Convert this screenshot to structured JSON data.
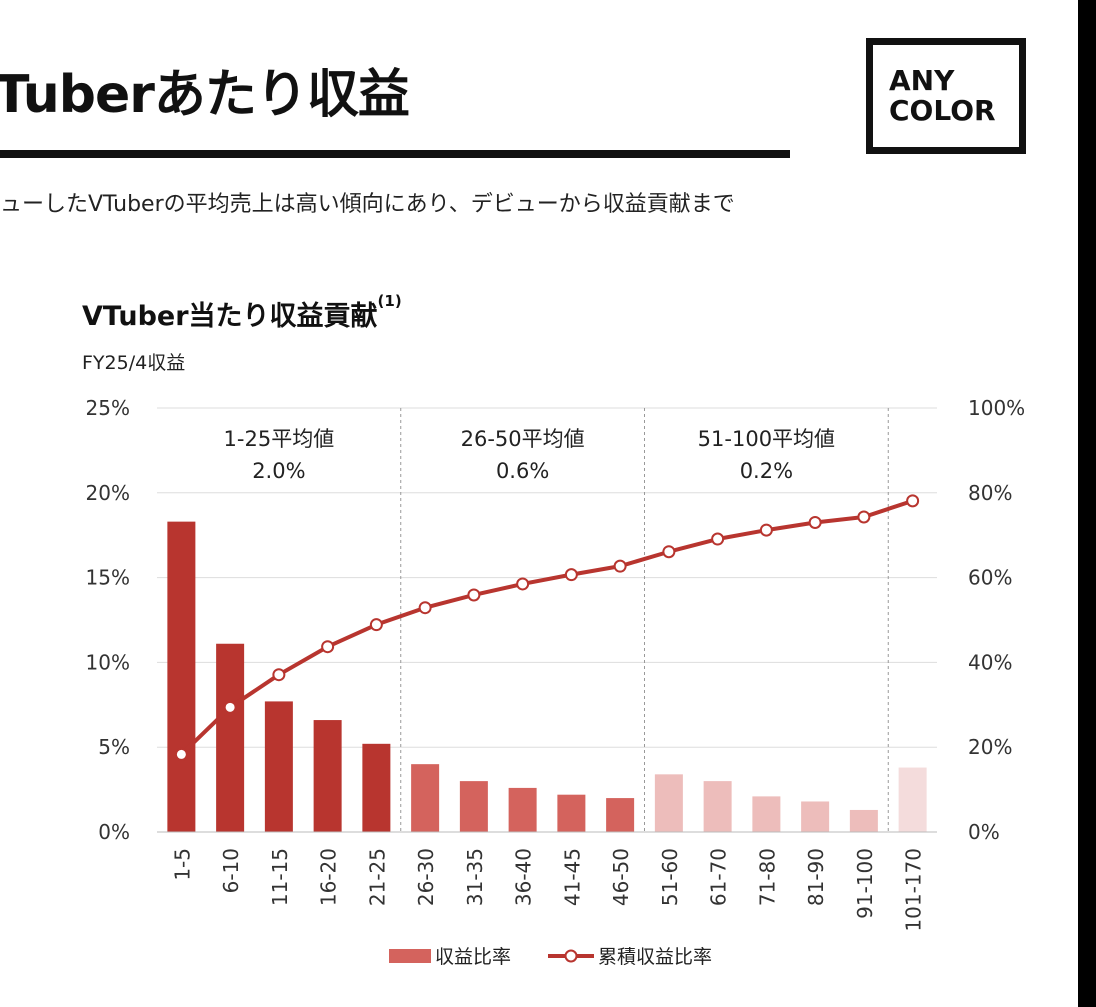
{
  "header": {
    "title": "Tuberあたり収益",
    "logo_line1": "ANY",
    "logo_line2": "COLOR",
    "subtitle": "ューしたVTuberの平均売上は高い傾向にあり、デビューから収益貢献まで"
  },
  "colors": {
    "bar_dark": "#b8352f",
    "bar_mid": "#d4635d",
    "bar_light": "#edbdbb",
    "bar_lightest": "#f4dcdc",
    "line": "#b8352f",
    "grid": "#dddddd"
  },
  "chart_data": {
    "type": "bar",
    "title": "VTuber当たり収益貢献",
    "title_note": "(1)",
    "unit_label": "FY25/4収益",
    "categories": [
      "1-5",
      "6-10",
      "11-15",
      "16-20",
      "21-25",
      "26-30",
      "31-35",
      "36-40",
      "41-45",
      "46-50",
      "51-60",
      "61-70",
      "71-80",
      "81-90",
      "91-100",
      "101-170"
    ],
    "series": [
      {
        "name": "収益比率",
        "type": "bar",
        "axis": "left",
        "values": [
          18.3,
          11.1,
          7.7,
          6.6,
          5.2,
          4.0,
          3.0,
          2.6,
          2.2,
          2.0,
          3.4,
          3.0,
          2.1,
          1.8,
          1.3,
          3.8
        ]
      },
      {
        "name": "累積収益比率",
        "type": "line",
        "axis": "right",
        "values": [
          18.3,
          29.4,
          37.1,
          43.7,
          48.9,
          52.9,
          55.9,
          58.5,
          60.7,
          62.7,
          66.1,
          69.1,
          71.2,
          73.0,
          74.3,
          78.1
        ]
      }
    ],
    "ylim_left": [
      0,
      25
    ],
    "ylim_right": [
      0,
      100
    ],
    "yticks_left": [
      "0%",
      "5%",
      "10%",
      "15%",
      "20%",
      "25%"
    ],
    "yticks_right": [
      "0%",
      "20%",
      "40%",
      "60%",
      "80%",
      "100%"
    ],
    "groups": [
      {
        "label": "1-25平均値",
        "value": "2.0%",
        "from": 0,
        "to": 4
      },
      {
        "label": "26-50平均値",
        "value": "0.6%",
        "from": 5,
        "to": 9
      },
      {
        "label": "51-100平均値",
        "value": "0.2%",
        "from": 10,
        "to": 14
      }
    ],
    "grid": true,
    "legend_position": "bottom"
  }
}
